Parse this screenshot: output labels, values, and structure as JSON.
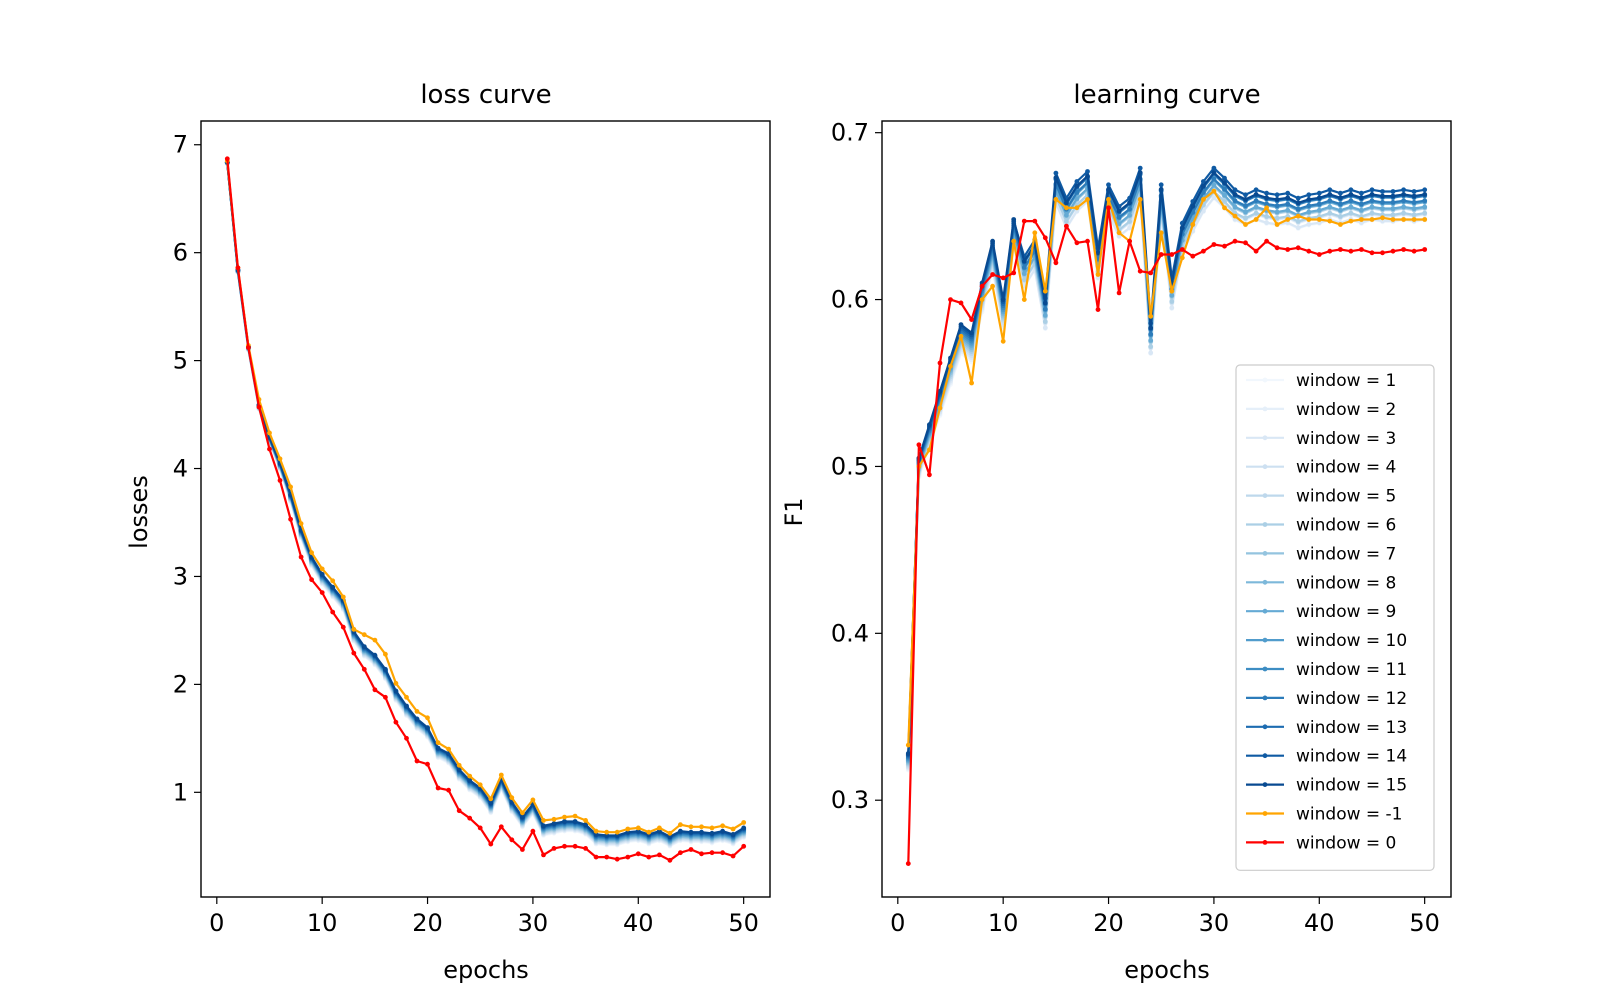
{
  "chart_data": [
    {
      "type": "line",
      "title": "loss curve",
      "xlabel": "epochs",
      "ylabel": "losses",
      "xlim": [
        -1.5,
        52.5
      ],
      "ylim": [
        0.03,
        7.22
      ],
      "xticks": [
        "0",
        "10",
        "20",
        "30",
        "40",
        "50"
      ],
      "yticks": [
        "1",
        "2",
        "3",
        "4",
        "5",
        "6",
        "7"
      ],
      "grid": false,
      "x": [
        1,
        2,
        3,
        4,
        5,
        6,
        7,
        8,
        9,
        10,
        11,
        12,
        13,
        14,
        15,
        16,
        17,
        18,
        19,
        20,
        21,
        22,
        23,
        24,
        25,
        26,
        27,
        28,
        29,
        30,
        31,
        32,
        33,
        34,
        35,
        36,
        37,
        38,
        39,
        40,
        41,
        42,
        43,
        44,
        45,
        46,
        47,
        48,
        49,
        50
      ],
      "reference": {
        "blue": [
          6.84,
          5.84,
          5.13,
          4.59,
          4.29,
          4.05,
          3.76,
          3.43,
          3.18,
          3.02,
          2.9,
          2.78,
          2.49,
          2.35,
          2.27,
          2.14,
          1.94,
          1.8,
          1.68,
          1.6,
          1.41,
          1.36,
          1.21,
          1.11,
          1.04,
          0.9,
          1.12,
          0.91,
          0.77,
          0.89,
          0.69,
          0.71,
          0.73,
          0.73,
          0.7,
          0.61,
          0.6,
          0.6,
          0.63,
          0.64,
          0.61,
          0.64,
          0.59,
          0.64,
          0.63,
          0.63,
          0.62,
          0.64,
          0.61,
          0.67
        ],
        "orange": [
          6.85,
          5.86,
          5.14,
          4.64,
          4.33,
          4.09,
          3.83,
          3.49,
          3.22,
          3.07,
          2.96,
          2.81,
          2.51,
          2.46,
          2.41,
          2.28,
          2.01,
          1.88,
          1.75,
          1.69,
          1.46,
          1.4,
          1.25,
          1.15,
          1.07,
          0.94,
          1.16,
          0.95,
          0.81,
          0.93,
          0.74,
          0.75,
          0.77,
          0.78,
          0.74,
          0.64,
          0.63,
          0.63,
          0.66,
          0.67,
          0.63,
          0.67,
          0.62,
          0.7,
          0.68,
          0.68,
          0.67,
          0.69,
          0.66,
          0.72
        ],
        "red": [
          6.87,
          5.86,
          5.12,
          4.57,
          4.18,
          3.89,
          3.53,
          3.18,
          2.97,
          2.85,
          2.67,
          2.53,
          2.29,
          2.14,
          1.95,
          1.88,
          1.65,
          1.5,
          1.29,
          1.26,
          1.04,
          1.02,
          0.83,
          0.76,
          0.67,
          0.52,
          0.68,
          0.56,
          0.47,
          0.64,
          0.42,
          0.48,
          0.5,
          0.5,
          0.48,
          0.4,
          0.4,
          0.38,
          0.4,
          0.43,
          0.4,
          0.42,
          0.37,
          0.44,
          0.47,
          0.43,
          0.44,
          0.44,
          0.41,
          0.5
        ]
      }
    },
    {
      "type": "line",
      "title": "learning curve",
      "xlabel": "epochs",
      "ylabel": "F1",
      "xlim": [
        -1.5,
        52.5
      ],
      "ylim": [
        0.242,
        0.707
      ],
      "xticks": [
        "0",
        "10",
        "20",
        "30",
        "40",
        "50"
      ],
      "yticks": [
        "0.3",
        "0.4",
        "0.5",
        "0.6",
        "0.7"
      ],
      "grid": false,
      "legend": "lower-right",
      "x": [
        1,
        2,
        3,
        4,
        5,
        6,
        7,
        8,
        9,
        10,
        11,
        12,
        13,
        14,
        15,
        16,
        17,
        18,
        19,
        20,
        21,
        22,
        23,
        24,
        25,
        26,
        27,
        28,
        29,
        30,
        31,
        32,
        33,
        34,
        35,
        36,
        37,
        38,
        39,
        40,
        41,
        42,
        43,
        44,
        45,
        46,
        47,
        48,
        49,
        50
      ],
      "reference": {
        "blue": [
          0.328,
          0.505,
          0.525,
          0.545,
          0.565,
          0.585,
          0.58,
          0.61,
          0.635,
          0.6,
          0.648,
          0.625,
          0.635,
          0.6,
          0.675,
          0.66,
          0.67,
          0.676,
          0.63,
          0.668,
          0.655,
          0.66,
          0.678,
          0.585,
          0.668,
          0.612,
          0.645,
          0.658,
          0.67,
          0.678,
          0.672,
          0.665,
          0.662,
          0.665,
          0.663,
          0.662,
          0.663,
          0.66,
          0.662,
          0.663,
          0.665,
          0.663,
          0.665,
          0.663,
          0.665,
          0.664,
          0.664,
          0.665,
          0.664,
          0.665
        ],
        "orange": [
          0.333,
          0.5,
          0.51,
          0.535,
          0.56,
          0.578,
          0.55,
          0.6,
          0.608,
          0.575,
          0.635,
          0.6,
          0.64,
          0.605,
          0.66,
          0.655,
          0.655,
          0.66,
          0.615,
          0.66,
          0.64,
          0.635,
          0.66,
          0.59,
          0.64,
          0.605,
          0.625,
          0.645,
          0.66,
          0.665,
          0.655,
          0.65,
          0.645,
          0.648,
          0.655,
          0.645,
          0.648,
          0.65,
          0.648,
          0.648,
          0.647,
          0.645,
          0.647,
          0.648,
          0.648,
          0.649,
          0.648,
          0.648,
          0.648,
          0.648
        ],
        "red": [
          0.262,
          0.513,
          0.495,
          0.562,
          0.6,
          0.598,
          0.588,
          0.608,
          0.615,
          0.613,
          0.616,
          0.647,
          0.647,
          0.637,
          0.622,
          0.644,
          0.634,
          0.635,
          0.594,
          0.655,
          0.604,
          0.635,
          0.617,
          0.616,
          0.627,
          0.627,
          0.63,
          0.626,
          0.629,
          0.633,
          0.632,
          0.635,
          0.634,
          0.629,
          0.635,
          0.631,
          0.63,
          0.631,
          0.629,
          0.627,
          0.629,
          0.63,
          0.629,
          0.63,
          0.628,
          0.628,
          0.629,
          0.63,
          0.629,
          0.63
        ]
      },
      "series": [
        {
          "name": "window = 1",
          "color": "#f1f7fd"
        },
        {
          "name": "window = 2",
          "color": "#e5eff9"
        },
        {
          "name": "window = 3",
          "color": "#d9e7f5"
        },
        {
          "name": "window = 4",
          "color": "#cde0f1"
        },
        {
          "name": "window = 5",
          "color": "#bed8ec"
        },
        {
          "name": "window = 6",
          "color": "#abcfe5"
        },
        {
          "name": "window = 7",
          "color": "#94c4df"
        },
        {
          "name": "window = 8",
          "color": "#7db8da"
        },
        {
          "name": "window = 9",
          "color": "#65aad4"
        },
        {
          "name": "window = 10",
          "color": "#519ccc"
        },
        {
          "name": "window = 11",
          "color": "#3d8dc3"
        },
        {
          "name": "window = 12",
          "color": "#2c7cba"
        },
        {
          "name": "window = 13",
          "color": "#1d6cb1"
        },
        {
          "name": "window = 14",
          "color": "#0f5aa3"
        },
        {
          "name": "window = 15",
          "color": "#084a91"
        },
        {
          "name": "window = -1",
          "color": "#ffa500"
        },
        {
          "name": "window = 0",
          "color": "#ff0000"
        }
      ]
    }
  ]
}
